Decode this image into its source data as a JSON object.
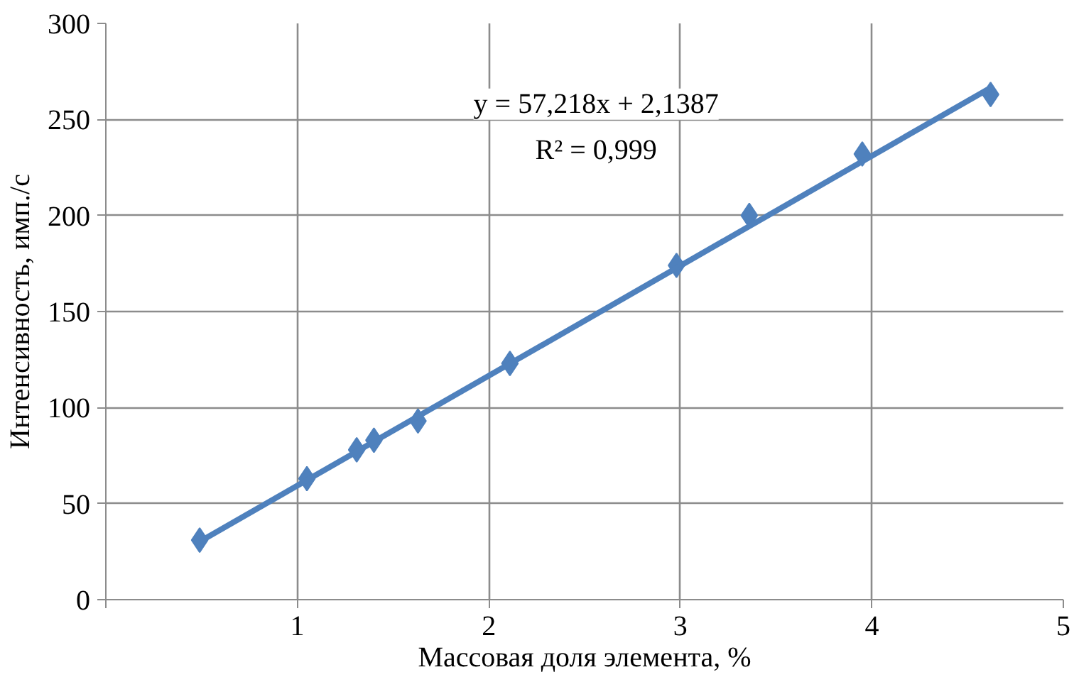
{
  "chart_data": {
    "type": "scatter",
    "xlabel": "Массовая доля элемента, %",
    "ylabel": "Интенсивность, имп./с",
    "annotations": [
      "y = 57,218x + 2,1387",
      "R² = 0,999"
    ],
    "series": [
      {
        "color": "#4f81bd",
        "marker": "diamond",
        "x": [
          0.49,
          1.05,
          1.31,
          1.4,
          1.63,
          2.11,
          2.98,
          3.36,
          3.95,
          4.62
        ],
        "values": [
          31,
          63,
          78,
          83,
          93,
          123,
          174,
          200,
          232,
          263
        ]
      },
      {
        "type": "line",
        "color": "#4f81bd",
        "line_style": "solid",
        "x": [
          0.49,
          4.62
        ],
        "values": [
          30.2,
          266.5
        ]
      }
    ],
    "xlim": [
      0,
      5
    ],
    "ylim": [
      0,
      300
    ],
    "xticks": [
      {
        "value": 0,
        "label": null
      },
      1,
      2,
      3,
      4,
      5
    ],
    "yticks": [
      0,
      50,
      100,
      150,
      200,
      250,
      300
    ],
    "grid": true
  }
}
